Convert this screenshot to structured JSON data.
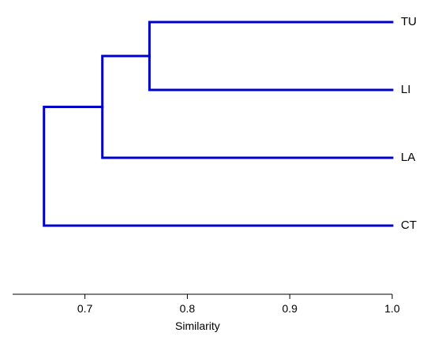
{
  "chart_data": {
    "type": "dendrogram",
    "xlabel": "Similarity",
    "xlim": [
      0.6294,
      1.0
    ],
    "x_ticks": [
      0.7,
      0.8,
      0.9,
      1.0
    ],
    "x_tick_labels": [
      "0.7",
      "0.8",
      "0.9",
      "1.0"
    ],
    "leaves": [
      "TU",
      "LI",
      "LA",
      "CT"
    ],
    "merges": [
      {
        "left": "TU",
        "right": "LI",
        "similarity": 0.763
      },
      {
        "left": "TU-LI",
        "right": "LA",
        "similarity": 0.717
      },
      {
        "left": "TU-LI-LA",
        "right": "CT",
        "similarity": 0.66
      }
    ],
    "colors": {
      "branches": "#0000cc",
      "axis": "#000000"
    },
    "grid": false
  }
}
